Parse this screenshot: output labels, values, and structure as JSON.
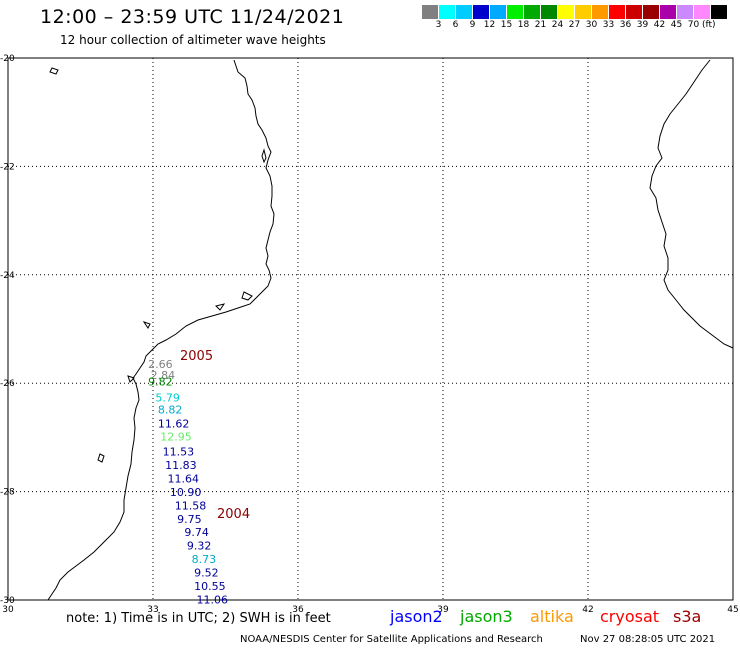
{
  "header": {
    "title": "12:00 – 23:59 UTC 11/24/2021",
    "subtitle": "12 hour collection of altimeter wave heights"
  },
  "colorbar": {
    "colors": [
      "#808080",
      "#00ffff",
      "#00ccff",
      "#0000cc",
      "#00aaff",
      "#00ee00",
      "#00aa00",
      "#008800",
      "#ffff00",
      "#ffcc00",
      "#ff9900",
      "#ff0000",
      "#cc0000",
      "#990000",
      "#aa00aa",
      "#cc88ff",
      "#ff88ff",
      "#000000"
    ],
    "labels": [
      "3",
      "6",
      "9",
      "12",
      "15",
      "18",
      "21",
      "24",
      "27",
      "30",
      "33",
      "36",
      "39",
      "42",
      "45",
      "70"
    ],
    "unit": "(ft)"
  },
  "axes": {
    "x_ticks": [
      "30",
      "33",
      "36",
      "39",
      "42",
      "45"
    ],
    "y_ticks": [
      "-20",
      "-22",
      "-24",
      "-26",
      "-28",
      "-30"
    ]
  },
  "tracks": [
    {
      "label": "2005",
      "color": "#8b0000"
    },
    {
      "label": "2004",
      "color": "#8b0000"
    }
  ],
  "wave_heights": [
    {
      "value": "2.66",
      "lon": 32.9,
      "lat": -25.72,
      "color": "#808080"
    },
    {
      "value": "2.84",
      "lon": 32.95,
      "lat": -25.92,
      "color": "#808080"
    },
    {
      "value": "9.82",
      "lon": 32.9,
      "lat": -26.04,
      "color": "#008800"
    },
    {
      "value": "5.79",
      "lon": 33.05,
      "lat": -26.34,
      "color": "#00cccc"
    },
    {
      "value": "8.82",
      "lon": 33.1,
      "lat": -26.56,
      "color": "#00aacc"
    },
    {
      "value": "11.62",
      "lon": 33.1,
      "lat": -26.82,
      "color": "#000099"
    },
    {
      "value": "12.95",
      "lon": 33.15,
      "lat": -27.06,
      "color": "#66ee66"
    },
    {
      "value": "11.53",
      "lon": 33.2,
      "lat": -27.33,
      "color": "#000099"
    },
    {
      "value": "11.83",
      "lon": 33.25,
      "lat": -27.58,
      "color": "#000099"
    },
    {
      "value": "11.64",
      "lon": 33.3,
      "lat": -27.83,
      "color": "#000099"
    },
    {
      "value": "10.90",
      "lon": 33.35,
      "lat": -28.08,
      "color": "#000099"
    },
    {
      "value": "11.58",
      "lon": 33.45,
      "lat": -28.33,
      "color": "#000099"
    },
    {
      "value": "9.75",
      "lon": 33.5,
      "lat": -28.58,
      "color": "#000099"
    },
    {
      "value": "9.74",
      "lon": 33.65,
      "lat": -28.82,
      "color": "#000099"
    },
    {
      "value": "9.32",
      "lon": 33.7,
      "lat": -29.07,
      "color": "#000099"
    },
    {
      "value": "8.73",
      "lon": 33.8,
      "lat": -29.32,
      "color": "#00aacc"
    },
    {
      "value": "9.52",
      "lon": 33.85,
      "lat": -29.57,
      "color": "#000099"
    },
    {
      "value": "10.55",
      "lon": 33.85,
      "lat": -29.82,
      "color": "#000099"
    },
    {
      "value": "11.06",
      "lon": 33.9,
      "lat": -30.06,
      "color": "#000099"
    }
  ],
  "footer": {
    "note": "note: 1) Time is in UTC; 2) SWH is in feet",
    "satellites": [
      {
        "name": "jason2",
        "color": "#0000ff"
      },
      {
        "name": "jason3",
        "color": "#00aa00"
      },
      {
        "name": "altika",
        "color": "#ff9900"
      },
      {
        "name": "cryosat",
        "color": "#ff0000"
      },
      {
        "name": "s3a",
        "color": "#990000"
      }
    ],
    "credit": "NOAA/NESDIS Center for Satellite Applications and Research",
    "timestamp": "Nov 27 08:28:05 UTC 2021"
  }
}
